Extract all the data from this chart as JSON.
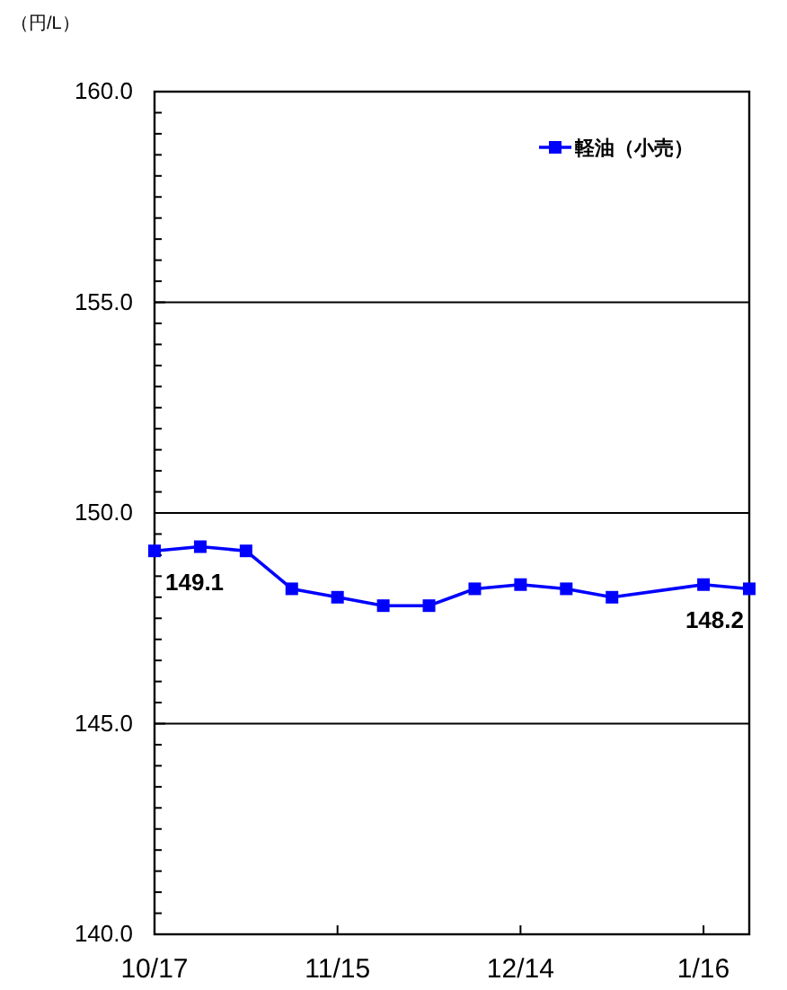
{
  "chart_data": {
    "type": "line",
    "ylabel": "（円/L）",
    "categories": [
      "10/17",
      null,
      null,
      null,
      "11/15",
      null,
      null,
      null,
      "12/14",
      null,
      null,
      null,
      "1/16",
      null
    ],
    "series": [
      {
        "name": "軽油（小売）",
        "color": "#0000ff",
        "values": [
          149.1,
          149.2,
          149.1,
          148.2,
          148.0,
          147.8,
          147.8,
          148.2,
          148.3,
          148.2,
          148.0,
          null,
          148.3,
          148.2
        ],
        "value_labels": [
          "149.1",
          null,
          null,
          null,
          null,
          null,
          null,
          null,
          null,
          null,
          null,
          null,
          null,
          "148.2"
        ]
      }
    ],
    "ylim": [
      140,
      160
    ],
    "yticks": [
      {
        "value": 140,
        "label": "140.0"
      },
      {
        "value": 140.5,
        "label": null
      },
      {
        "value": 141,
        "label": null
      },
      {
        "value": 141.5,
        "label": null
      },
      {
        "value": 142,
        "label": null
      },
      {
        "value": 142.5,
        "label": null
      },
      {
        "value": 143,
        "label": null
      },
      {
        "value": 143.5,
        "label": null
      },
      {
        "value": 144,
        "label": null
      },
      {
        "value": 144.5,
        "label": null
      },
      {
        "value": 145,
        "label": "145.0"
      },
      {
        "value": 145.5,
        "label": null
      },
      {
        "value": 146,
        "label": null
      },
      {
        "value": 146.5,
        "label": null
      },
      {
        "value": 147,
        "label": null
      },
      {
        "value": 147.5,
        "label": null
      },
      {
        "value": 148,
        "label": null
      },
      {
        "value": 148.5,
        "label": null
      },
      {
        "value": 149,
        "label": null
      },
      {
        "value": 149.5,
        "label": null
      },
      {
        "value": 150,
        "label": "150.0"
      },
      {
        "value": 150.5,
        "label": null
      },
      {
        "value": 151,
        "label": null
      },
      {
        "value": 151.5,
        "label": null
      },
      {
        "value": 152,
        "label": null
      },
      {
        "value": 152.5,
        "label": null
      },
      {
        "value": 153,
        "label": null
      },
      {
        "value": 153.5,
        "label": null
      },
      {
        "value": 154,
        "label": null
      },
      {
        "value": 154.5,
        "label": null
      },
      {
        "value": 155,
        "label": "155.0"
      },
      {
        "value": 155.5,
        "label": null
      },
      {
        "value": 156,
        "label": null
      },
      {
        "value": 156.5,
        "label": null
      },
      {
        "value": 157,
        "label": null
      },
      {
        "value": 157.5,
        "label": null
      },
      {
        "value": 158,
        "label": null
      },
      {
        "value": 158.5,
        "label": null
      },
      {
        "value": 159,
        "label": null
      },
      {
        "value": 159.5,
        "label": null
      },
      {
        "value": 160,
        "label": "160.0"
      }
    ],
    "grid": "y",
    "legend": "top right",
    "marker": "square",
    "line_style": "solid"
  }
}
